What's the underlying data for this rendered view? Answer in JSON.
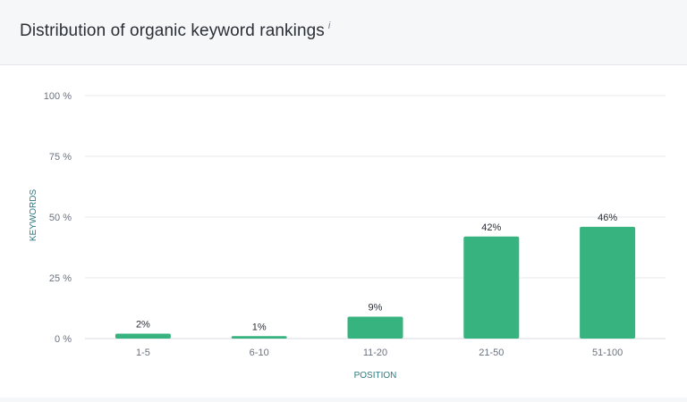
{
  "header": {
    "title": "Distribution of organic keyword rankings",
    "info_glyph": "i"
  },
  "chart_data": {
    "type": "bar",
    "title": "Distribution of organic keyword rankings",
    "xlabel": "POSITION",
    "ylabel": "KEYWORDS",
    "categories": [
      "1-5",
      "6-10",
      "11-20",
      "21-50",
      "51-100"
    ],
    "values": [
      2,
      1,
      9,
      42,
      46
    ],
    "value_labels": [
      "2%",
      "1%",
      "9%",
      "42%",
      "46%"
    ],
    "ylim": [
      0,
      100
    ],
    "yticks": [
      0,
      25,
      50,
      75,
      100
    ],
    "ytick_labels": [
      "0 %",
      "25 %",
      "50 %",
      "75 %",
      "100 %"
    ],
    "grid": true,
    "legend": "none",
    "colors": {
      "bar": "#36b37e",
      "grid": "#e6e9ee",
      "tick": "#6b7280",
      "label": "#2b7a7f"
    }
  }
}
